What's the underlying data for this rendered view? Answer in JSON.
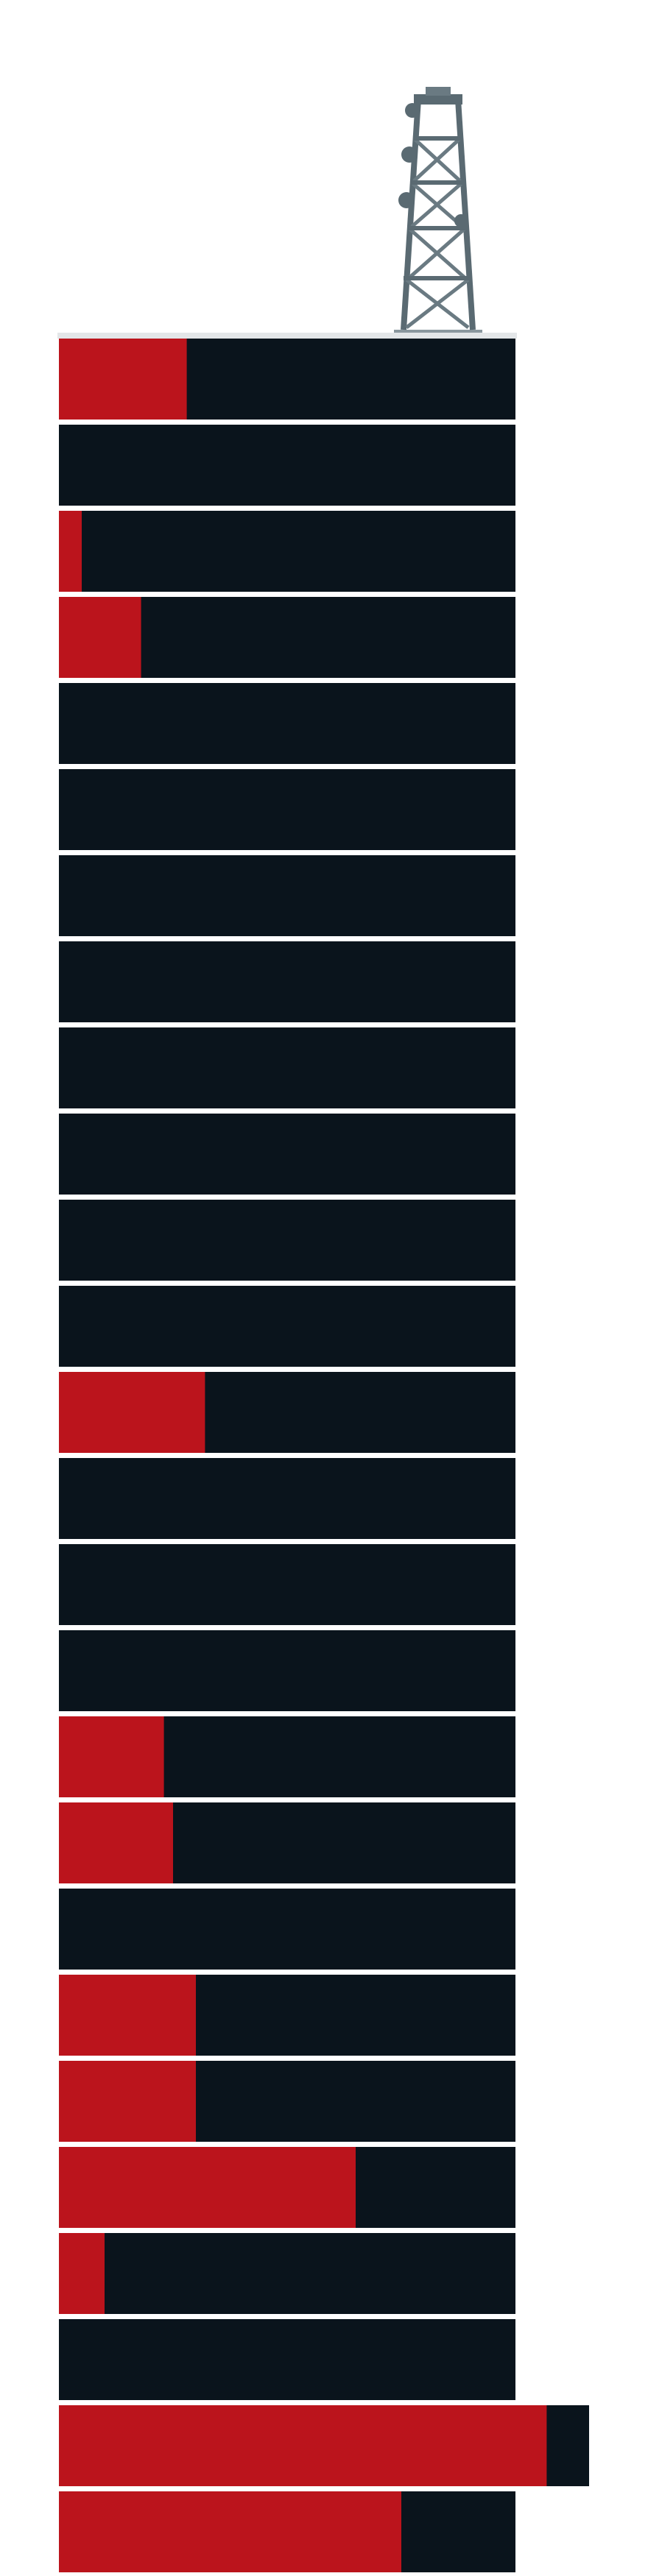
{
  "colors": {
    "background": "#ffffff",
    "floor": "#0a141c",
    "highlight": "#bb141c",
    "divider": "#f2f2f2",
    "antenna": "#5a6a72",
    "antenna_light": "#e3e6e8"
  },
  "chart_data": {
    "type": "bar",
    "orientation": "horizontal",
    "stacked": true,
    "stack_order": "top-to-bottom",
    "xlim": [
      0,
      1
    ],
    "series": [
      {
        "color": "#bb141c",
        "values": [
          0.28,
          0,
          0.05,
          0.18,
          0,
          0,
          0,
          0,
          0,
          0,
          0,
          0,
          0.32,
          0,
          0,
          0,
          0.23,
          0.25,
          0,
          0.3,
          0.3,
          0.65,
          0.1,
          0,
          0.92,
          0.75
        ]
      }
    ],
    "grid": false,
    "legend": "none",
    "decorations": [
      "antenna-icon"
    ]
  }
}
